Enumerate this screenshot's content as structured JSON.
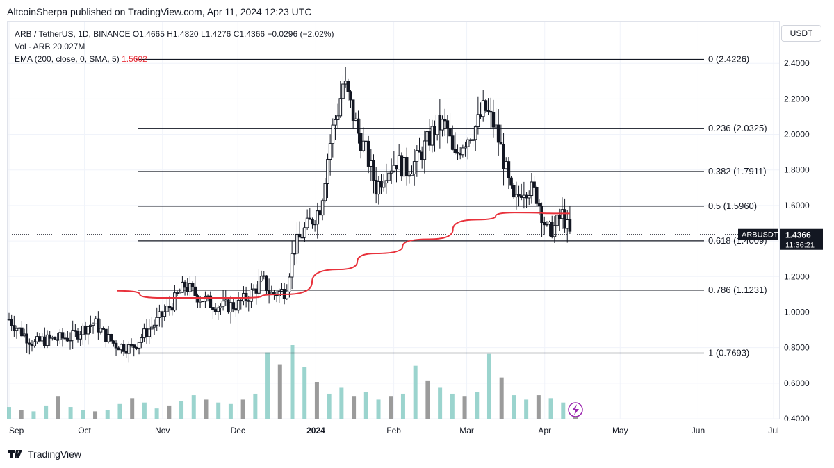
{
  "header": {
    "publisher_line": "AltcoinSherpa published on TradingView.com, Apr 11, 2024 12:23 UTC"
  },
  "legend": {
    "symbol_line": "ARB / TetherUS, 1D, BINANCE",
    "ohlc": {
      "o": "O1.4665",
      "h": "H1.4820",
      "l": "L1.4276",
      "c": "C1.4366",
      "change": "−0.0296 (−2.02%)"
    },
    "volume_label": "Vol · ARB",
    "volume_value": "20.027M",
    "ema_label": "EMA (200, close, 0, SMA, 5)",
    "ema_value": "1.5602"
  },
  "currency_button": "USDT",
  "price_tag": {
    "symbol": "ARBUSDT",
    "price": "1.4366",
    "countdown": "11:36:21"
  },
  "footer": {
    "brand": "TradingView"
  },
  "chart_data": {
    "type": "candlestick",
    "y_axis": {
      "min": 0.4,
      "max": 2.5,
      "ticks": [
        "2.4000",
        "2.2000",
        "2.0000",
        "1.8000",
        "1.6000",
        "1.4000",
        "1.2000",
        "1.0000",
        "0.8000",
        "0.6000",
        "0.4000"
      ]
    },
    "x_axis": {
      "labels": [
        {
          "text": "Sep",
          "date": "2023-09-01"
        },
        {
          "text": "Oct",
          "date": "2023-10-01"
        },
        {
          "text": "Nov",
          "date": "2023-11-01"
        },
        {
          "text": "Dec",
          "date": "2023-12-01"
        },
        {
          "text": "2024",
          "date": "2024-01-01",
          "bold": true
        },
        {
          "text": "Feb",
          "date": "2024-02-01"
        },
        {
          "text": "Mar",
          "date": "2024-03-01"
        },
        {
          "text": "Apr",
          "date": "2024-04-01"
        },
        {
          "text": "May",
          "date": "2024-05-01"
        },
        {
          "text": "Jun",
          "date": "2024-06-01"
        },
        {
          "text": "Jul",
          "date": "2024-07-01"
        }
      ]
    },
    "price_path": [
      [
        "2023-09-01",
        0.96
      ],
      [
        "2023-09-05",
        0.9
      ],
      [
        "2023-09-11",
        0.82
      ],
      [
        "2023-09-14",
        0.84
      ],
      [
        "2023-09-20",
        0.85
      ],
      [
        "2023-09-26",
        0.86
      ],
      [
        "2023-10-02",
        0.92
      ],
      [
        "2023-10-05",
        0.94
      ],
      [
        "2023-10-09",
        0.87
      ],
      [
        "2023-10-13",
        0.82
      ],
      [
        "2023-10-18",
        0.8
      ],
      [
        "2023-10-20",
        0.8
      ],
      [
        "2023-10-25",
        0.88
      ],
      [
        "2023-10-30",
        0.95
      ],
      [
        "2023-11-05",
        1.05
      ],
      [
        "2023-11-10",
        1.15
      ],
      [
        "2023-11-14",
        1.1
      ],
      [
        "2023-11-20",
        1.05
      ],
      [
        "2023-11-25",
        1.03
      ],
      [
        "2023-12-01",
        1.04
      ],
      [
        "2023-12-06",
        1.1
      ],
      [
        "2023-12-11",
        1.18
      ],
      [
        "2023-12-14",
        1.1
      ],
      [
        "2023-12-20",
        1.12
      ],
      [
        "2023-12-23",
        1.35
      ],
      [
        "2023-12-27",
        1.45
      ],
      [
        "2024-01-01",
        1.55
      ],
      [
        "2024-01-03",
        1.6
      ],
      [
        "2024-01-06",
        1.9
      ],
      [
        "2024-01-08",
        2.05
      ],
      [
        "2024-01-10",
        2.15
      ],
      [
        "2024-01-12",
        2.3
      ],
      [
        "2024-01-15",
        2.15
      ],
      [
        "2024-01-18",
        2.0
      ],
      [
        "2024-01-21",
        1.9
      ],
      [
        "2024-01-25",
        1.7
      ],
      [
        "2024-01-29",
        1.8
      ],
      [
        "2024-02-02",
        1.85
      ],
      [
        "2024-02-06",
        1.8
      ],
      [
        "2024-02-10",
        1.85
      ],
      [
        "2024-02-14",
        1.95
      ],
      [
        "2024-02-18",
        2.05
      ],
      [
        "2024-02-22",
        2.05
      ],
      [
        "2024-02-25",
        1.85
      ],
      [
        "2024-02-28",
        1.95
      ],
      [
        "2024-03-02",
        2.0
      ],
      [
        "2024-03-05",
        2.05
      ],
      [
        "2024-03-08",
        2.15
      ],
      [
        "2024-03-12",
        2.05
      ],
      [
        "2024-03-15",
        1.9
      ],
      [
        "2024-03-18",
        1.7
      ],
      [
        "2024-03-20",
        1.6
      ],
      [
        "2024-03-23",
        1.7
      ],
      [
        "2024-03-26",
        1.7
      ],
      [
        "2024-03-29",
        1.65
      ],
      [
        "2024-04-02",
        1.45
      ],
      [
        "2024-04-05",
        1.48
      ],
      [
        "2024-04-08",
        1.55
      ],
      [
        "2024-04-11",
        1.4366
      ]
    ],
    "ema_path": [
      [
        "2023-10-14",
        1.12
      ],
      [
        "2023-11-01",
        1.08
      ],
      [
        "2023-12-01",
        1.08
      ],
      [
        "2023-12-20",
        1.1
      ],
      [
        "2024-01-10",
        1.24
      ],
      [
        "2024-01-25",
        1.33
      ],
      [
        "2024-02-15",
        1.41
      ],
      [
        "2024-03-05",
        1.52
      ],
      [
        "2024-03-20",
        1.56
      ],
      [
        "2024-04-11",
        1.555
      ]
    ],
    "volume_heights": [
      0.16,
      0.12,
      0.1,
      0.18,
      0.3,
      0.16,
      0.12,
      0.1,
      0.12,
      0.2,
      0.28,
      0.22,
      0.14,
      0.18,
      0.24,
      0.32,
      0.26,
      0.22,
      0.2,
      0.26,
      0.34,
      0.9,
      0.74,
      1.0,
      0.7,
      0.5,
      0.34,
      0.42,
      0.3,
      0.36,
      0.26,
      0.3,
      0.34,
      0.72,
      0.52,
      0.42,
      0.34,
      0.3,
      0.36,
      0.88,
      0.56,
      0.32,
      0.26,
      0.32,
      0.28,
      0.22,
      0.14
    ],
    "fib_levels": [
      {
        "label": "0 (2.4226)",
        "price": 2.4226
      },
      {
        "label": "0.236 (2.0325)",
        "price": 2.0325
      },
      {
        "label": "0.382 (1.7911)",
        "price": 1.7911
      },
      {
        "label": "0.5 (1.5960)",
        "price": 1.596
      },
      {
        "label": "0.618 (1.4009)",
        "price": 1.4009
      },
      {
        "label": "0.786 (1.1231)",
        "price": 1.1231
      },
      {
        "label": "1 (0.7693)",
        "price": 0.7693
      }
    ],
    "last_price": 1.4366,
    "colors": {
      "ema": "#e8313b",
      "candle": "#131722",
      "volume_up": "#89cdc6",
      "volume_down": "#8a8a8a",
      "grid": "#f0f3fa",
      "fib": "#131722",
      "tag_bg": "#131722"
    }
  }
}
